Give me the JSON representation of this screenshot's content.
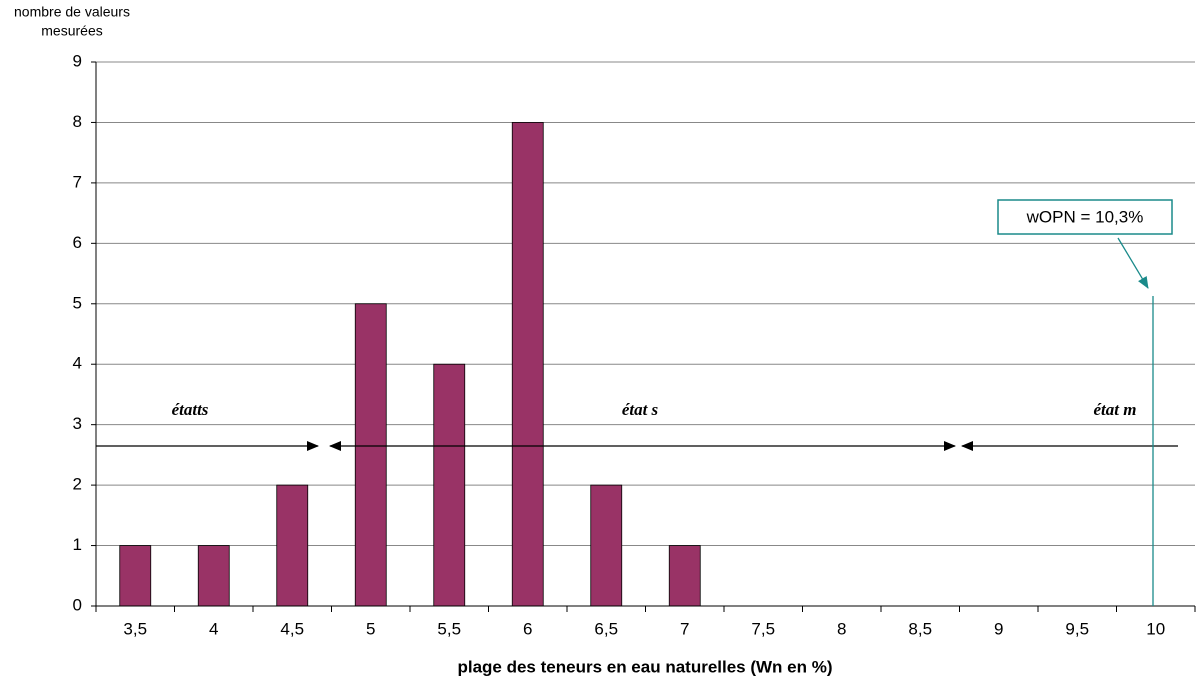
{
  "chart_data": {
    "type": "bar",
    "ylabel_lines": [
      "nombre  de valeurs",
      "mesurées"
    ],
    "xlabel": "plage des teneurs en eau naturelles (Wn en %)",
    "categories": [
      "3,5",
      "4",
      "4,5",
      "5",
      "5,5",
      "6",
      "6,5",
      "7",
      "7,5",
      "8",
      "8,5",
      "9",
      "9,5",
      "10"
    ],
    "values": [
      1,
      1,
      2,
      5,
      4,
      8,
      2,
      1,
      0,
      0,
      0,
      0,
      0,
      0
    ],
    "color": "#993366",
    "ylim": [
      0,
      9
    ],
    "yticks": [
      0,
      1,
      2,
      3,
      4,
      5,
      6,
      7,
      8,
      9
    ],
    "grid": true,
    "annotations": [
      "étatts",
      "état s",
      "état m",
      "wOPN = 10,3%"
    ]
  }
}
